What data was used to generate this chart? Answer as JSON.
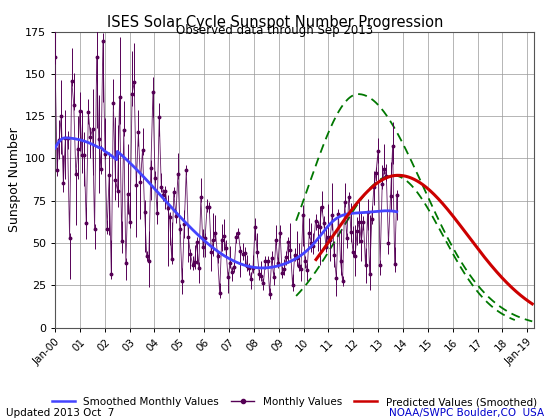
{
  "title": "ISES Solar Cycle Sunspot Number Progression",
  "subtitle": "Observed data through Sep 2013",
  "ylabel": "Sunspot Number",
  "ylim": [
    0,
    175
  ],
  "yticks": [
    0,
    25,
    50,
    75,
    100,
    125,
    150,
    175
  ],
  "x_start_year": 2000.0,
  "x_end_year": 2019.25,
  "background_color": "#ffffff",
  "grid_color": "#999999",
  "smoothed_color": "#4444ff",
  "monthly_color": "#550055",
  "predicted_color": "#cc0000",
  "predicted_upper_color": "#007700",
  "predicted_lower_color": "#007700",
  "footer_left": "Updated 2013 Oct  7",
  "footer_right": "NOAA/SWPC Boulder,CO  USA",
  "footer_color_left": "#000000",
  "footer_color_right": "#0000cc"
}
